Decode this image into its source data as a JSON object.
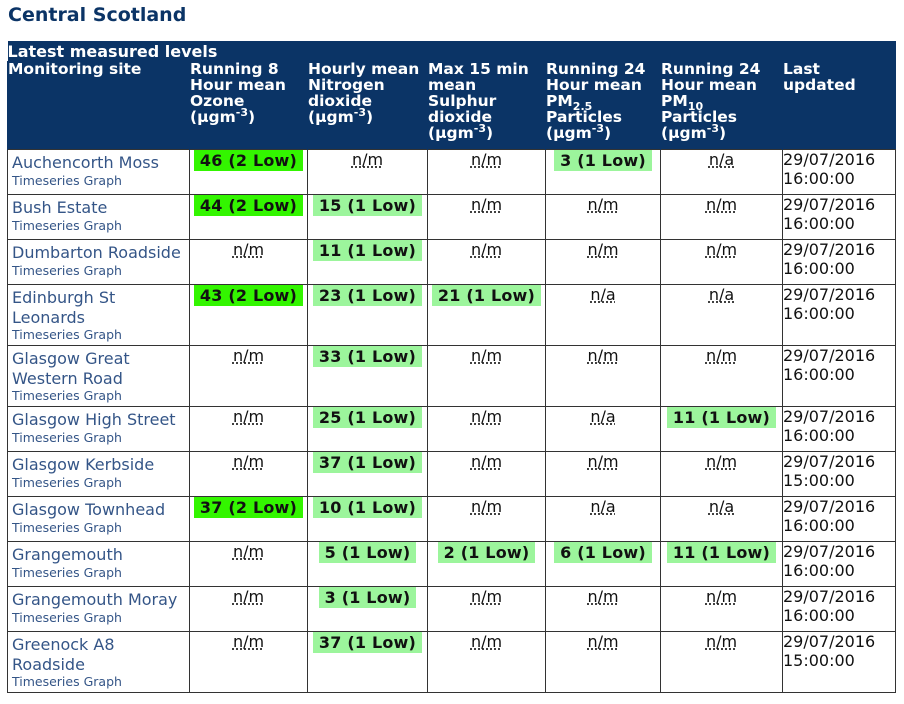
{
  "region_title": "Central Scotland",
  "table_caption": "Latest measured levels",
  "colors": {
    "header_bg": "#0b3466",
    "level_2_low": "#33f500",
    "level_1_low": "#9cf59c",
    "link": "#345587"
  },
  "headers": {
    "site": "Monitoring site",
    "ozone": {
      "main": "Running 8 Hour mean Ozone",
      "unit": "(µgm",
      "sup": "-3",
      "close": ")"
    },
    "no2": {
      "main": "Hourly mean Nitrogen dioxide",
      "unit": "(µgm",
      "sup": "-3",
      "close": ")"
    },
    "so2": {
      "main": "Max 15 min mean Sulphur dioxide",
      "unit": "(µgm",
      "sup": "-3",
      "close": ")"
    },
    "pm25": {
      "pre": "Running 24 Hour mean PM",
      "sub": "2.5",
      "post": "Particles",
      "unit": "(µgm",
      "sup": "-3",
      "close": ")"
    },
    "pm10": {
      "pre": "Running 24 Hour mean PM",
      "sub": "10",
      "post": "Particles",
      "unit": "(µgm",
      "sup": "-3",
      "close": ")"
    },
    "updated": "Last updated"
  },
  "graph_link_label": "Timeseries Graph",
  "rows": [
    {
      "site": "Auchencorth Moss",
      "ozone": {
        "text": "46 (2 Low)",
        "band": 2
      },
      "no2": {
        "text": "n/m",
        "band": 0
      },
      "so2": {
        "text": "n/m",
        "band": 0
      },
      "pm25": {
        "text": "3 (1 Low)",
        "band": 1
      },
      "pm10": {
        "text": "n/a",
        "band": 0
      },
      "date": "29/07/2016",
      "time": "16:00:00"
    },
    {
      "site": "Bush Estate",
      "ozone": {
        "text": "44 (2 Low)",
        "band": 2
      },
      "no2": {
        "text": "15 (1 Low)",
        "band": 1
      },
      "so2": {
        "text": "n/m",
        "band": 0
      },
      "pm25": {
        "text": "n/m",
        "band": 0
      },
      "pm10": {
        "text": "n/m",
        "band": 0
      },
      "date": "29/07/2016",
      "time": "16:00:00"
    },
    {
      "site": "Dumbarton Roadside",
      "ozone": {
        "text": "n/m",
        "band": 0
      },
      "no2": {
        "text": "11 (1 Low)",
        "band": 1
      },
      "so2": {
        "text": "n/m",
        "band": 0
      },
      "pm25": {
        "text": "n/m",
        "band": 0
      },
      "pm10": {
        "text": "n/m",
        "band": 0
      },
      "date": "29/07/2016",
      "time": "16:00:00"
    },
    {
      "site": "Edinburgh St Leonards",
      "ozone": {
        "text": "43 (2 Low)",
        "band": 2
      },
      "no2": {
        "text": "23 (1 Low)",
        "band": 1
      },
      "so2": {
        "text": "21 (1 Low)",
        "band": 1
      },
      "pm25": {
        "text": "n/a",
        "band": 0
      },
      "pm10": {
        "text": "n/a",
        "band": 0
      },
      "date": "29/07/2016",
      "time": "16:00:00"
    },
    {
      "site": "Glasgow Great Western Road",
      "ozone": {
        "text": "n/m",
        "band": 0
      },
      "no2": {
        "text": "33 (1 Low)",
        "band": 1
      },
      "so2": {
        "text": "n/m",
        "band": 0
      },
      "pm25": {
        "text": "n/m",
        "band": 0
      },
      "pm10": {
        "text": "n/m",
        "band": 0
      },
      "date": "29/07/2016",
      "time": "16:00:00"
    },
    {
      "site": "Glasgow High Street",
      "ozone": {
        "text": "n/m",
        "band": 0
      },
      "no2": {
        "text": "25 (1 Low)",
        "band": 1
      },
      "so2": {
        "text": "n/m",
        "band": 0
      },
      "pm25": {
        "text": "n/a",
        "band": 0
      },
      "pm10": {
        "text": "11 (1 Low)",
        "band": 1
      },
      "date": "29/07/2016",
      "time": "16:00:00"
    },
    {
      "site": "Glasgow Kerbside",
      "ozone": {
        "text": "n/m",
        "band": 0
      },
      "no2": {
        "text": "37 (1 Low)",
        "band": 1
      },
      "so2": {
        "text": "n/m",
        "band": 0
      },
      "pm25": {
        "text": "n/m",
        "band": 0
      },
      "pm10": {
        "text": "n/m",
        "band": 0
      },
      "date": "29/07/2016",
      "time": "15:00:00"
    },
    {
      "site": "Glasgow Townhead",
      "ozone": {
        "text": "37 (2 Low)",
        "band": 2
      },
      "no2": {
        "text": "10 (1 Low)",
        "band": 1
      },
      "so2": {
        "text": "n/m",
        "band": 0
      },
      "pm25": {
        "text": "n/a",
        "band": 0
      },
      "pm10": {
        "text": "n/a",
        "band": 0
      },
      "date": "29/07/2016",
      "time": "16:00:00"
    },
    {
      "site": "Grangemouth",
      "ozone": {
        "text": "n/m",
        "band": 0
      },
      "no2": {
        "text": "5 (1 Low)",
        "band": 1
      },
      "so2": {
        "text": "2 (1 Low)",
        "band": 1
      },
      "pm25": {
        "text": "6 (1 Low)",
        "band": 1
      },
      "pm10": {
        "text": "11 (1 Low)",
        "band": 1
      },
      "date": "29/07/2016",
      "time": "16:00:00"
    },
    {
      "site": "Grangemouth Moray",
      "ozone": {
        "text": "n/m",
        "band": 0
      },
      "no2": {
        "text": "3 (1 Low)",
        "band": 1
      },
      "so2": {
        "text": "n/m",
        "band": 0
      },
      "pm25": {
        "text": "n/m",
        "band": 0
      },
      "pm10": {
        "text": "n/m",
        "band": 0
      },
      "date": "29/07/2016",
      "time": "16:00:00"
    },
    {
      "site": "Greenock A8 Roadside",
      "ozone": {
        "text": "n/m",
        "band": 0
      },
      "no2": {
        "text": "37 (1 Low)",
        "band": 1
      },
      "so2": {
        "text": "n/m",
        "band": 0
      },
      "pm25": {
        "text": "n/m",
        "band": 0
      },
      "pm10": {
        "text": "n/m",
        "band": 0
      },
      "date": "29/07/2016",
      "time": "15:00:00"
    }
  ]
}
